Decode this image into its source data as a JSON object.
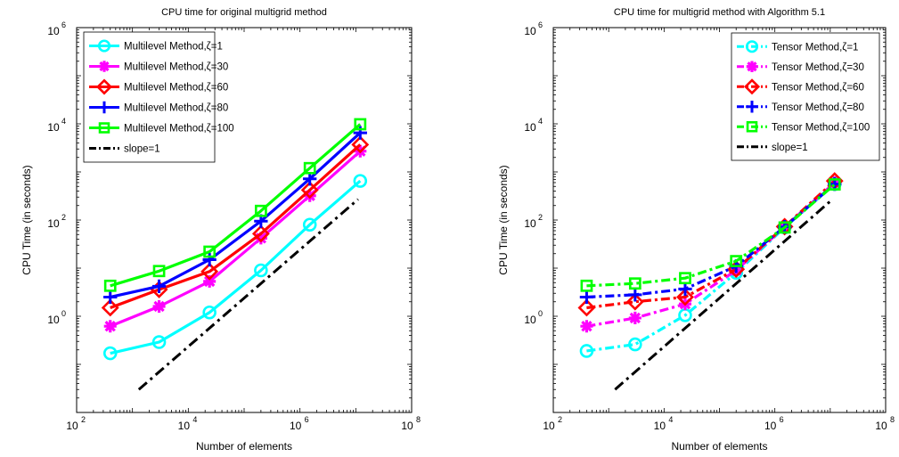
{
  "chart_data": [
    {
      "type": "line",
      "title": "CPU time for original multigrid method",
      "xlabel": "Number of elements",
      "ylabel": "CPU Time (in seconds)",
      "xscale": "log",
      "yscale": "log",
      "xlim": [
        100,
        100000000
      ],
      "ylim": [
        0.01,
        1000000
      ],
      "x_ticks": [
        {
          "base": "10",
          "exp": "2"
        },
        {
          "base": "10",
          "exp": "4"
        },
        {
          "base": "10",
          "exp": "6"
        },
        {
          "base": "10",
          "exp": "8"
        }
      ],
      "y_ticks": [
        {
          "base": "10",
          "exp": "0"
        },
        {
          "base": "10",
          "exp": "2"
        },
        {
          "base": "10",
          "exp": "4"
        },
        {
          "base": "10",
          "exp": "6"
        }
      ],
      "grid": false,
      "legend_position": "top-left",
      "x": [
        400,
        3000,
        24000,
        200000,
        1500000,
        12000000
      ],
      "series": [
        {
          "name": "Multilevel Method,ζ=1",
          "color": "#00ffff",
          "marker": "circle",
          "style": "solid",
          "values": [
            0.17,
            0.29,
            1.2,
            9,
            80,
            650
          ]
        },
        {
          "name": "Multilevel Method,ζ=30",
          "color": "#ff00ff",
          "marker": "star",
          "style": "solid",
          "values": [
            0.62,
            1.6,
            5.3,
            42,
            320,
            2700
          ]
        },
        {
          "name": "Multilevel Method,ζ=60",
          "color": "#ff0000",
          "marker": "diamond",
          "style": "solid",
          "values": [
            1.5,
            3.6,
            8.5,
            52,
            420,
            3700
          ]
        },
        {
          "name": "Multilevel Method,ζ=80",
          "color": "#0000ff",
          "marker": "plus",
          "style": "solid",
          "values": [
            2.5,
            4.2,
            15,
            95,
            720,
            6500
          ]
        },
        {
          "name": "Multilevel Method,ζ=100",
          "color": "#00ff00",
          "marker": "square",
          "style": "solid",
          "values": [
            4.3,
            8.7,
            22,
            155,
            1200,
            9800
          ]
        },
        {
          "name": "slope=1",
          "color": "#000000",
          "marker": "none",
          "style": "dashdot",
          "x": [
            1300,
            11000000
          ],
          "values": [
            0.03,
            270
          ]
        }
      ]
    },
    {
      "type": "line",
      "title": "CPU time for multigrid method with Algorithm 5.1",
      "xlabel": "Number of elements",
      "ylabel": "CPU Time (in seconds)",
      "xscale": "log",
      "yscale": "log",
      "xlim": [
        100,
        100000000
      ],
      "ylim": [
        0.01,
        1000000
      ],
      "x_ticks": [
        {
          "base": "10",
          "exp": "2"
        },
        {
          "base": "10",
          "exp": "4"
        },
        {
          "base": "10",
          "exp": "6"
        },
        {
          "base": "10",
          "exp": "8"
        }
      ],
      "y_ticks": [
        {
          "base": "10",
          "exp": "0"
        },
        {
          "base": "10",
          "exp": "2"
        },
        {
          "base": "10",
          "exp": "4"
        },
        {
          "base": "10",
          "exp": "6"
        }
      ],
      "grid": false,
      "legend_position": "top-right",
      "x": [
        400,
        3000,
        24000,
        200000,
        1500000,
        12000000
      ],
      "series": [
        {
          "name": "Tensor Method,ζ=1",
          "color": "#00ffff",
          "marker": "circle",
          "style": "dashdot",
          "values": [
            0.19,
            0.26,
            1.05,
            8,
            70,
            560
          ]
        },
        {
          "name": "Tensor Method,ζ=30",
          "color": "#ff00ff",
          "marker": "star",
          "style": "dashdot",
          "values": [
            0.62,
            0.92,
            1.8,
            9,
            72,
            600
          ]
        },
        {
          "name": "Tensor Method,ζ=60",
          "color": "#ff0000",
          "marker": "diamond",
          "style": "dashdot",
          "values": [
            1.5,
            2.0,
            2.5,
            9.5,
            73,
            650
          ]
        },
        {
          "name": "Tensor Method,ζ=80",
          "color": "#0000ff",
          "marker": "plus",
          "style": "dashdot",
          "values": [
            2.5,
            2.8,
            3.7,
            11,
            72,
            560
          ]
        },
        {
          "name": "Tensor Method,ζ=100",
          "color": "#00ff00",
          "marker": "square",
          "style": "dashdot",
          "values": [
            4.3,
            4.8,
            6.2,
            14,
            70,
            550
          ]
        },
        {
          "name": "slope=1",
          "color": "#000000",
          "marker": "none",
          "style": "dashdot",
          "x": [
            1300,
            11000000
          ],
          "values": [
            0.03,
            270
          ]
        }
      ]
    }
  ]
}
